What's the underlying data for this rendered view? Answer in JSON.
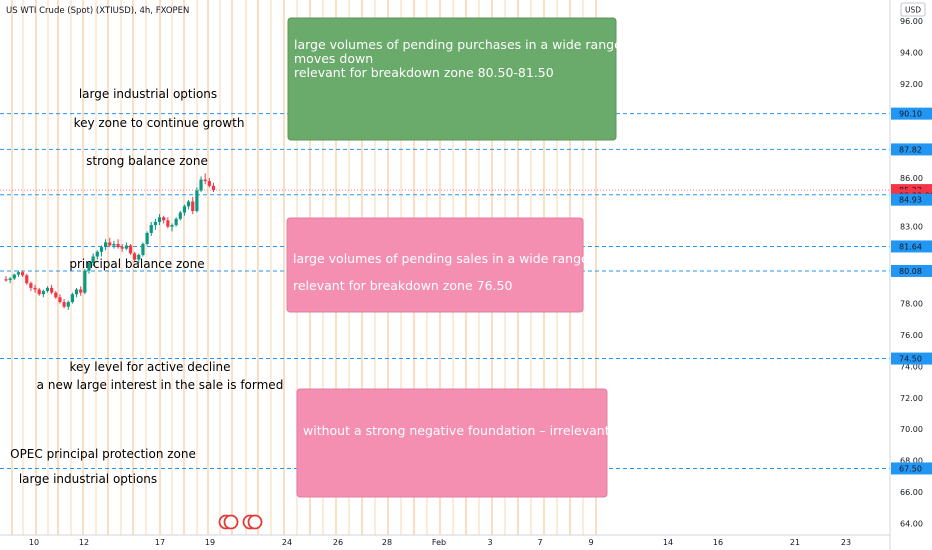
{
  "header": {
    "title": "US WTI Crude (Spot) (XTIUSD), 4h, FXOPEN",
    "currency": "USD"
  },
  "chart_data": {
    "type": "candlestick",
    "y_axis": {
      "min": 64,
      "max": 96,
      "ticks": [
        "96.00",
        "94.00",
        "92.00",
        "86.00",
        "83.00",
        "78.00",
        "76.00",
        "74.00",
        "72.00",
        "70.00",
        "68.00",
        "66.00",
        "64.00"
      ]
    },
    "x_axis": {
      "ticks": [
        "10",
        "12",
        "17",
        "19",
        "24",
        "26",
        "28",
        "Feb",
        "3",
        "7",
        "9",
        "14",
        "16",
        "21",
        "23"
      ]
    },
    "price_labels": [
      {
        "label": "90.10",
        "value": 90.1,
        "kind": "level"
      },
      {
        "label": "87.82",
        "value": 87.82,
        "kind": "level"
      },
      {
        "label": "85.23",
        "value": 85.23,
        "kind": "last"
      },
      {
        "label": "02:33:09",
        "value": 84.9,
        "kind": "countdown"
      },
      {
        "label": "84.93",
        "value": 84.62,
        "kind": "level"
      },
      {
        "label": "81.64",
        "value": 81.64,
        "kind": "level"
      },
      {
        "label": "80.08",
        "value": 80.08,
        "kind": "level"
      },
      {
        "label": "74.50",
        "value": 74.5,
        "kind": "level"
      },
      {
        "label": "67.50",
        "value": 67.5,
        "kind": "level"
      }
    ],
    "levels": [
      90.1,
      87.82,
      84.93,
      81.64,
      80.08,
      74.5,
      67.5
    ],
    "last_price": 85.23,
    "candles": [
      [
        79.55,
        79.75,
        79.4,
        79.5
      ],
      [
        79.5,
        79.7,
        79.3,
        79.6
      ],
      [
        79.6,
        79.9,
        79.5,
        79.85
      ],
      [
        79.85,
        80.1,
        79.7,
        80.0
      ],
      [
        80.0,
        80.1,
        79.7,
        79.8
      ],
      [
        79.8,
        79.9,
        79.2,
        79.3
      ],
      [
        79.3,
        79.4,
        78.8,
        79.0
      ],
      [
        79.0,
        79.2,
        78.7,
        78.9
      ],
      [
        78.9,
        79.0,
        78.5,
        78.6
      ],
      [
        78.6,
        78.9,
        78.4,
        78.8
      ],
      [
        78.8,
        79.1,
        78.7,
        79.0
      ],
      [
        79.0,
        79.2,
        78.6,
        78.7
      ],
      [
        78.7,
        78.8,
        78.3,
        78.4
      ],
      [
        78.4,
        78.6,
        78.0,
        78.1
      ],
      [
        78.1,
        78.3,
        77.7,
        77.8
      ],
      [
        77.8,
        78.2,
        77.6,
        78.1
      ],
      [
        78.1,
        78.7,
        78.0,
        78.6
      ],
      [
        78.6,
        79.0,
        78.4,
        78.9
      ],
      [
        78.9,
        79.1,
        78.5,
        78.7
      ],
      [
        78.7,
        80.2,
        78.6,
        80.1
      ],
      [
        80.1,
        80.7,
        79.9,
        80.6
      ],
      [
        80.6,
        81.2,
        80.4,
        81.0
      ],
      [
        81.0,
        81.4,
        80.8,
        81.3
      ],
      [
        81.3,
        81.7,
        81.0,
        81.6
      ],
      [
        81.6,
        82.1,
        81.4,
        81.9
      ],
      [
        81.9,
        82.2,
        81.6,
        81.7
      ],
      [
        81.7,
        82.0,
        81.5,
        81.8
      ],
      [
        81.8,
        82.1,
        81.5,
        81.6
      ],
      [
        81.6,
        81.8,
        81.3,
        81.5
      ],
      [
        81.5,
        81.9,
        81.4,
        81.7
      ],
      [
        81.7,
        81.8,
        81.1,
        81.2
      ],
      [
        81.2,
        81.3,
        80.7,
        80.8
      ],
      [
        80.8,
        81.2,
        80.6,
        81.1
      ],
      [
        81.1,
        81.9,
        81.0,
        81.8
      ],
      [
        81.8,
        82.6,
        81.7,
        82.5
      ],
      [
        82.5,
        83.2,
        82.3,
        83.0
      ],
      [
        83.0,
        83.4,
        82.7,
        83.2
      ],
      [
        83.2,
        83.7,
        83.0,
        83.5
      ],
      [
        83.5,
        83.6,
        83.1,
        83.3
      ],
      [
        83.3,
        83.5,
        82.8,
        82.9
      ],
      [
        82.9,
        83.1,
        82.6,
        83.0
      ],
      [
        83.0,
        83.5,
        82.9,
        83.4
      ],
      [
        83.4,
        83.9,
        83.3,
        83.8
      ],
      [
        83.8,
        84.3,
        83.6,
        84.2
      ],
      [
        84.2,
        84.6,
        84.0,
        84.5
      ],
      [
        84.5,
        84.8,
        83.7,
        83.9
      ],
      [
        83.9,
        85.4,
        83.8,
        85.2
      ],
      [
        85.2,
        86.1,
        85.1,
        85.9
      ],
      [
        85.9,
        86.3,
        85.6,
        85.8
      ],
      [
        85.8,
        86.0,
        85.4,
        85.5
      ],
      [
        85.5,
        85.7,
        85.1,
        85.23
      ]
    ],
    "annotations": [
      "large industrial options",
      "key zone to continue growth",
      "strong balance zone",
      "principal balance zone",
      "key level for active decline",
      "a new large interest in the sale is formed",
      "OPEC principal protection zone",
      "large industrial options"
    ],
    "boxes": [
      {
        "lines": [
          "large volumes of pending purchases in a wide range",
          "moves down",
          "relevant for breakdown zone 80.50-81.50"
        ],
        "color": "#6aaa6a"
      },
      {
        "lines": [
          "large volumes of pending sales in a wide range",
          "relevant for breakdown zone 76.50"
        ],
        "color": "#f48fb1"
      },
      {
        "lines": [
          "without a strong negative foundation – irrelevant"
        ],
        "color": "#f48fb1"
      }
    ]
  }
}
